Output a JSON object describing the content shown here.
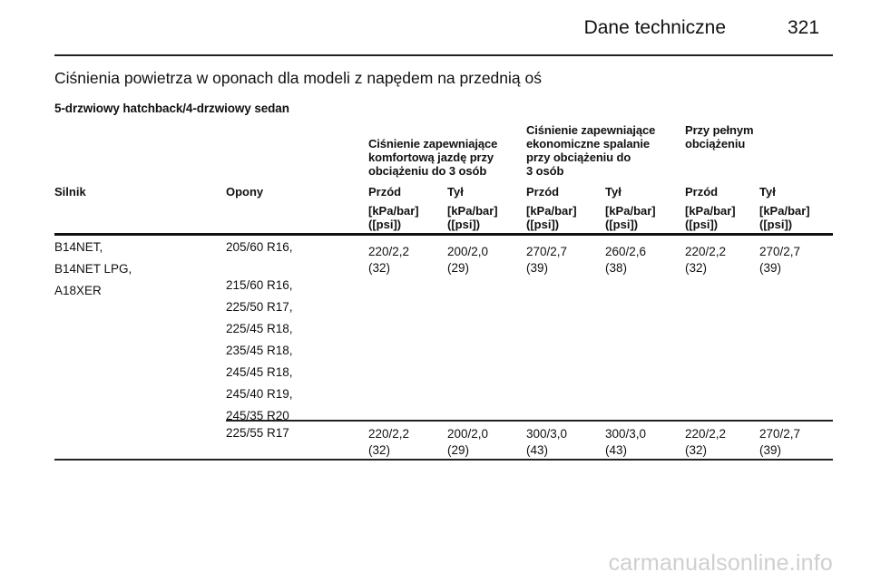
{
  "header": {
    "title": "Dane techniczne",
    "page": "321"
  },
  "section_title": "Ciśnienia powietrza w oponach dla modeli z napędem na przednią oś",
  "variant": "5-drzwiowy hatchback/4-drzwiowy sedan",
  "table": {
    "groups": [
      "Ciśnienie zapewniające\nkomfortową jazdę przy\nobciążeniu do 3 osób",
      "Ciśnienie zapewniające\nekonomiczne spalanie\nprzy obciążeniu do\n3 osób",
      "Przy pełnym\nobciążeniu"
    ],
    "columns": [
      "Silnik",
      "Opony",
      "Przód",
      "Tył",
      "Przód",
      "Tył",
      "Przód",
      "Tył"
    ],
    "unit": "[kPa/bar]\n([psi])",
    "rows": [
      {
        "engines": [
          "B14NET,",
          "B14NET LPG,",
          "A18XER"
        ],
        "tyres": [
          "205/60 R16,",
          "",
          "215/60 R16,",
          "225/50 R17,",
          "225/45 R18,",
          "235/45 R18,",
          "245/45 R18,",
          "245/40 R19,",
          "245/35 R20"
        ],
        "values": [
          "220/2,2\n(32)",
          "200/2,0\n(29)",
          "270/2,7\n(39)",
          "260/2,6\n(38)",
          "220/2,2\n(32)",
          "270/2,7\n(39)"
        ]
      },
      {
        "engines": [],
        "tyres": [
          "225/55 R17"
        ],
        "values": [
          "220/2,2\n(32)",
          "200/2,0\n(29)",
          "300/3,0\n(43)",
          "300/3,0\n(43)",
          "220/2,2\n(32)",
          "270/2,7\n(39)"
        ]
      }
    ]
  },
  "watermark": "carmanualsonline.info"
}
